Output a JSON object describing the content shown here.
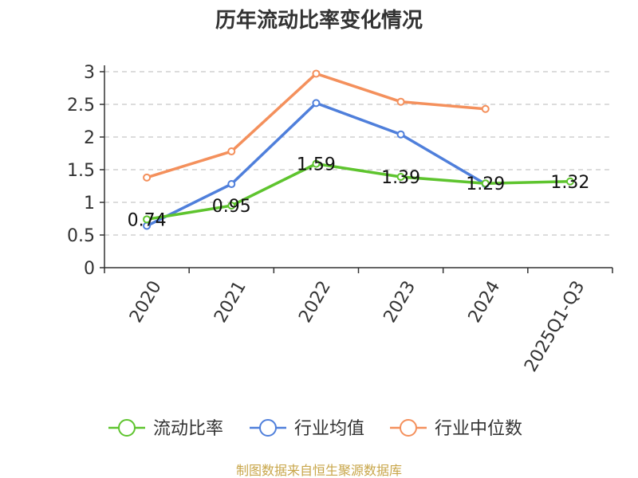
{
  "chart_data": {
    "type": "line",
    "title": "历年流动比率变化情况",
    "categories": [
      "2020",
      "2021",
      "2022",
      "2023",
      "2024",
      "2025Q1-Q3"
    ],
    "series": [
      {
        "name": "流动比率",
        "color": "#5ec42e",
        "values": [
          0.74,
          0.95,
          1.59,
          1.39,
          1.29,
          1.32
        ],
        "show_labels": true
      },
      {
        "name": "行业均值",
        "color": "#4f7fdb",
        "values": [
          0.64,
          1.28,
          2.52,
          2.04,
          1.28,
          null
        ],
        "show_labels": false
      },
      {
        "name": "行业中位数",
        "color": "#f4905c",
        "values": [
          1.38,
          1.78,
          2.97,
          2.54,
          2.43,
          null
        ],
        "show_labels": false
      }
    ],
    "yticks": [
      "0",
      "0.5",
      "1",
      "1.5",
      "2",
      "2.5",
      "3"
    ],
    "ylim": [
      0,
      3
    ],
    "grid": true,
    "legend_position": "bottom",
    "source": "制图数据来自恒生聚源数据库"
  }
}
